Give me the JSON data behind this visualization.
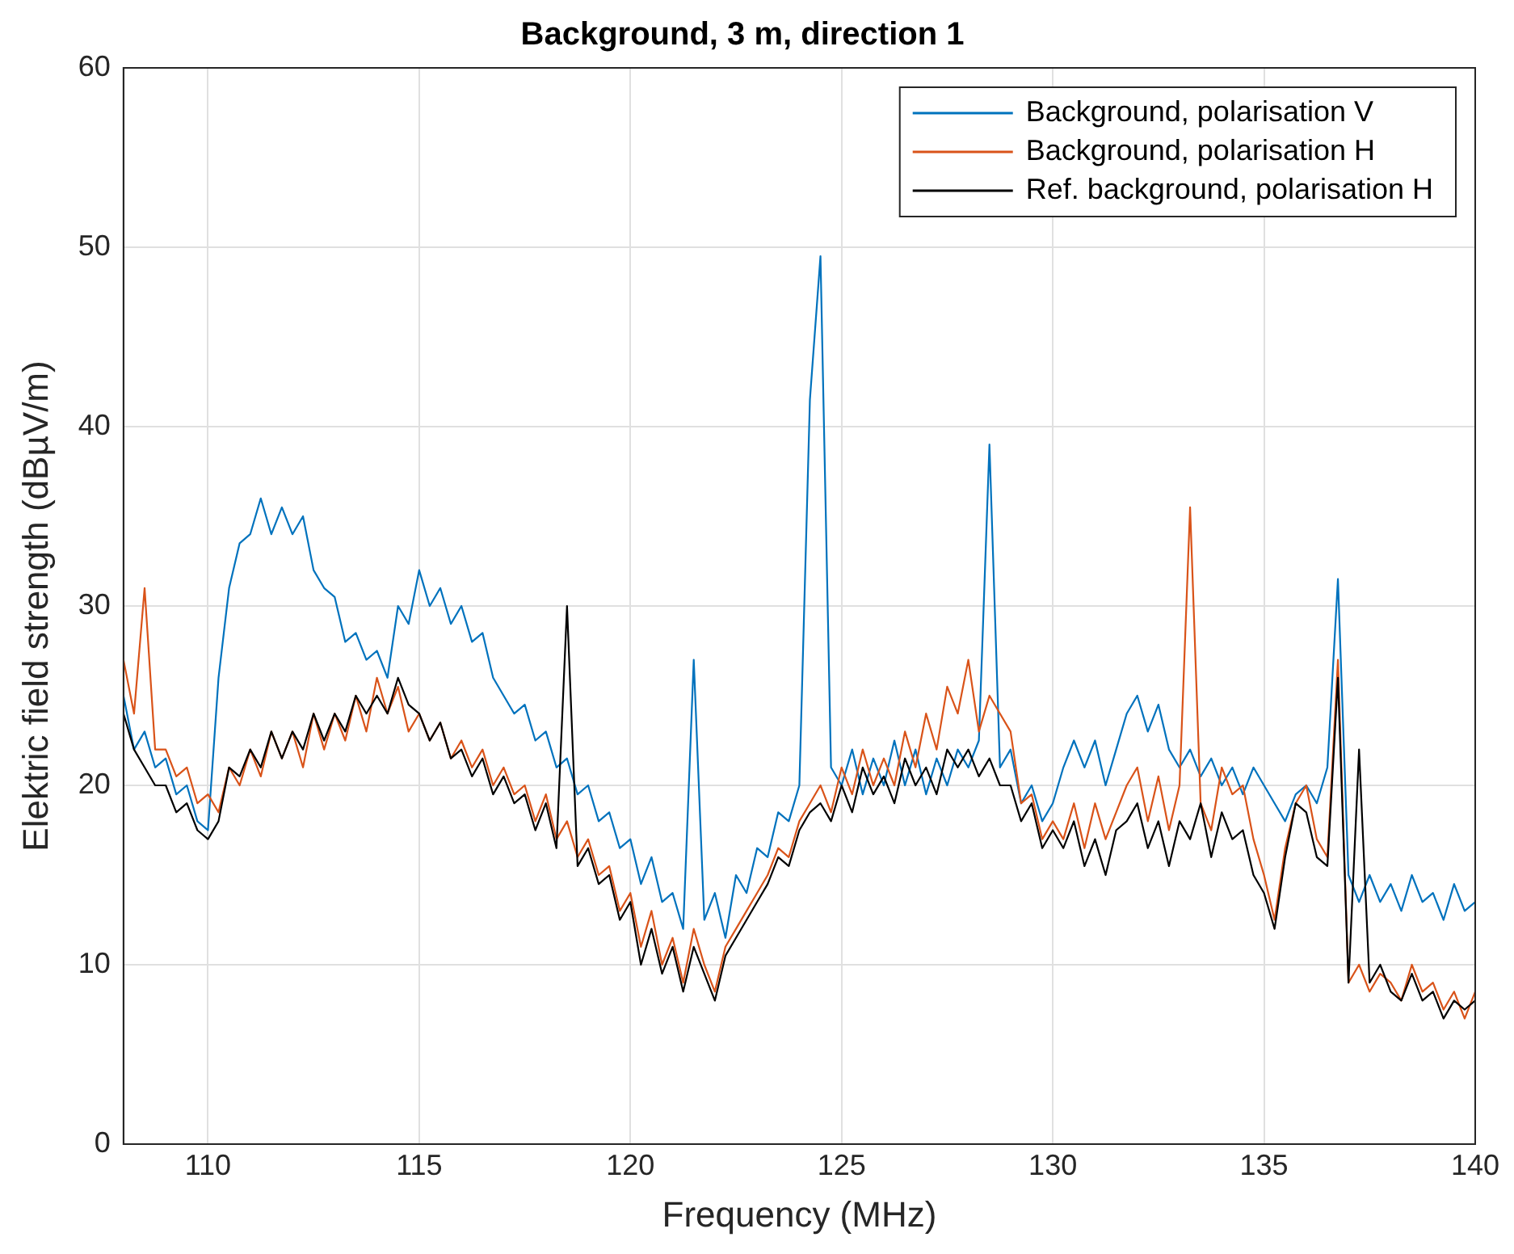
{
  "chart_data": {
    "type": "line",
    "title": "Background, 3 m, direction 1",
    "xlabel": "Frequency (MHz)",
    "ylabel": "Elektric field strength (dBµV/m)",
    "x": [
      108,
      108.25,
      108.5,
      108.75,
      109,
      109.25,
      109.5,
      109.75,
      110,
      110.25,
      110.5,
      110.75,
      111,
      111.25,
      111.5,
      111.75,
      112,
      112.25,
      112.5,
      112.75,
      113,
      113.25,
      113.5,
      113.75,
      114,
      114.25,
      114.5,
      114.75,
      115,
      115.25,
      115.5,
      115.75,
      116,
      116.25,
      116.5,
      116.75,
      117,
      117.25,
      117.5,
      117.75,
      118,
      118.25,
      118.5,
      118.75,
      119,
      119.25,
      119.5,
      119.75,
      120,
      120.25,
      120.5,
      120.75,
      121,
      121.25,
      121.5,
      121.75,
      122,
      122.25,
      122.5,
      122.75,
      123,
      123.25,
      123.5,
      123.75,
      124,
      124.25,
      124.5,
      124.75,
      125,
      125.25,
      125.5,
      125.75,
      126,
      126.25,
      126.5,
      126.75,
      127,
      127.25,
      127.5,
      127.75,
      128,
      128.25,
      128.5,
      128.75,
      129,
      129.25,
      129.5,
      129.75,
      130,
      130.25,
      130.5,
      130.75,
      131,
      131.25,
      131.5,
      131.75,
      132,
      132.25,
      132.5,
      132.75,
      133,
      133.25,
      133.5,
      133.75,
      134,
      134.25,
      134.5,
      134.75,
      135,
      135.25,
      135.5,
      135.75,
      136,
      136.25,
      136.5,
      136.75,
      137,
      137.25,
      137.5,
      137.75,
      138,
      138.25,
      138.5,
      138.75,
      139,
      139.25,
      139.5,
      139.75,
      140
    ],
    "series": [
      {
        "name": "Background, polarisation V",
        "color": "#0072bd",
        "values": [
          25,
          22,
          23,
          21,
          21.5,
          19.5,
          20,
          18,
          17.5,
          26,
          31,
          33.5,
          34,
          36,
          34,
          35.5,
          34,
          35,
          32,
          31,
          30.5,
          28,
          28.5,
          27,
          27.5,
          26,
          30,
          29,
          32,
          30,
          31,
          29,
          30,
          28,
          28.5,
          26,
          25,
          24,
          24.5,
          22.5,
          23,
          21,
          21.5,
          19.5,
          20,
          18,
          18.5,
          16.5,
          17,
          14.5,
          16,
          13.5,
          14,
          12,
          27,
          12.5,
          14,
          11.5,
          15,
          14,
          16.5,
          16,
          18.5,
          18,
          20,
          41.5,
          49.5,
          21,
          20,
          22,
          19.5,
          21.5,
          20,
          22.5,
          20,
          22,
          19.5,
          21.5,
          20,
          22,
          21,
          22.5,
          39,
          21,
          22,
          19,
          20,
          18,
          19,
          21,
          22.5,
          21,
          22.5,
          20,
          22,
          24,
          25,
          23,
          24.5,
          22,
          21,
          22,
          20.5,
          21.5,
          20,
          21,
          19.5,
          21,
          20,
          19,
          18,
          19.5,
          20,
          19,
          21,
          31.5,
          15,
          13.5,
          15,
          13.5,
          14.5,
          13,
          15,
          13.5,
          14,
          12.5,
          14.5,
          13,
          13.5
        ]
      },
      {
        "name": "Background, polarisation H",
        "color": "#d95319",
        "values": [
          27,
          24,
          31,
          22,
          22,
          20.5,
          21,
          19,
          19.5,
          18.5,
          21,
          20,
          22,
          20.5,
          23,
          21.5,
          23,
          21,
          24,
          22,
          24,
          22.5,
          25,
          23,
          26,
          24,
          25.5,
          23,
          24,
          22.5,
          23.5,
          21.5,
          22.5,
          21,
          22,
          20,
          21,
          19.5,
          20,
          18,
          19.5,
          17,
          18,
          16,
          17,
          15,
          15.5,
          13,
          14,
          11,
          13,
          10,
          11.5,
          9,
          12,
          10,
          8.5,
          11,
          12,
          13,
          14,
          15,
          16.5,
          16,
          18,
          19,
          20,
          18.5,
          21,
          19.5,
          22,
          20,
          21.5,
          20,
          23,
          21,
          24,
          22,
          25.5,
          24,
          27,
          23,
          25,
          24,
          23,
          19,
          19.5,
          17,
          18,
          17,
          19,
          16.5,
          19,
          17,
          18.5,
          20,
          21,
          18,
          20.5,
          17.5,
          20,
          35.5,
          19,
          17.5,
          21,
          19.5,
          20,
          17,
          15,
          12.5,
          16.5,
          19,
          20,
          17,
          16,
          27,
          9,
          10,
          8.5,
          9.5,
          9,
          8,
          10,
          8.5,
          9,
          7.5,
          8.5,
          7,
          8.5
        ]
      },
      {
        "name": "Ref. background, polarisation H",
        "color": "#000000",
        "values": [
          24,
          22,
          21,
          20,
          20,
          18.5,
          19,
          17.5,
          17,
          18,
          21,
          20.5,
          22,
          21,
          23,
          21.5,
          23,
          22,
          24,
          22.5,
          24,
          23,
          25,
          24,
          25,
          24,
          26,
          24.5,
          24,
          22.5,
          23.5,
          21.5,
          22,
          20.5,
          21.5,
          19.5,
          20.5,
          19,
          19.5,
          17.5,
          19,
          16.5,
          30,
          15.5,
          16.5,
          14.5,
          15,
          12.5,
          13.5,
          10,
          12,
          9.5,
          11,
          8.5,
          11,
          9.5,
          8,
          10.5,
          11.5,
          12.5,
          13.5,
          14.5,
          16,
          15.5,
          17.5,
          18.5,
          19,
          18,
          20,
          18.5,
          21,
          19.5,
          20.5,
          19,
          21.5,
          20,
          21,
          19.5,
          22,
          21,
          22,
          20.5,
          21.5,
          20,
          20,
          18,
          19,
          16.5,
          17.5,
          16.5,
          18,
          15.5,
          17,
          15,
          17.5,
          18,
          19,
          16.5,
          18,
          15.5,
          18,
          17,
          19,
          16,
          18.5,
          17,
          17.5,
          15,
          14,
          12,
          16,
          19,
          18.5,
          16,
          15.5,
          26,
          9,
          22,
          9,
          10,
          8.5,
          8,
          9.5,
          8,
          8.5,
          7,
          8,
          7.5,
          8
        ]
      }
    ],
    "xlim": [
      108,
      140
    ],
    "xticks": [
      110,
      115,
      120,
      125,
      130,
      135,
      140
    ],
    "ylim": [
      0,
      60
    ],
    "yticks": [
      0,
      10,
      20,
      30,
      40,
      50,
      60
    ],
    "grid": true,
    "legend": "top right",
    "marker": "none",
    "line_style": "solid"
  }
}
